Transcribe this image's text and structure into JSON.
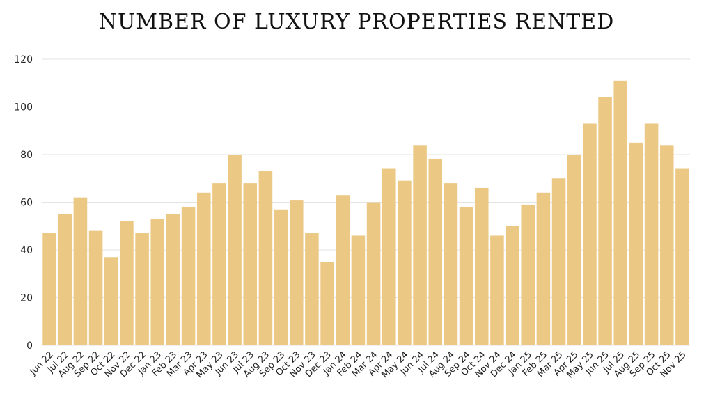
{
  "chart_data": {
    "type": "bar",
    "title": "NUMBER OF LUXURY PROPERTIES RENTED",
    "xlabel": "",
    "ylabel": "",
    "ylim": [
      0,
      120
    ],
    "yticks": [
      0,
      20,
      40,
      60,
      80,
      100,
      120
    ],
    "grid": true,
    "color": "#EBC985",
    "categories": [
      "Jun 22",
      "Jul 22",
      "Aug 22",
      "Sep 22",
      "Oct 22",
      "Nov 22",
      "Dec 22",
      "Jan 23",
      "Feb 23",
      "Mar 23",
      "Apr 23",
      "May 23",
      "Jun 23",
      "Jul 23",
      "Aug 23",
      "Sep 23",
      "Oct 23",
      "Nov 23",
      "Dec 23",
      "Jan 24",
      "Feb 24",
      "Mar 24",
      "Apr 24",
      "May 24",
      "Jun 24",
      "Jul 24",
      "Aug 24",
      "Sep 24",
      "Oct 24",
      "Nov 24",
      "Dec 24",
      "Jan 25",
      "Feb 25",
      "Mar 25",
      "Apr 25",
      "May 25",
      "Jun 25",
      "Jul 25",
      "Aug 25",
      "Sep 25",
      "Oct 25",
      "Nov 25"
    ],
    "values": [
      47,
      55,
      62,
      48,
      37,
      52,
      47,
      53,
      55,
      58,
      64,
      68,
      80,
      68,
      73,
      57,
      61,
      47,
      35,
      63,
      46,
      60,
      74,
      69,
      84,
      78,
      68,
      58,
      66,
      46,
      50,
      59,
      64,
      70,
      80,
      93,
      104,
      111,
      85,
      93,
      84,
      74
    ]
  }
}
